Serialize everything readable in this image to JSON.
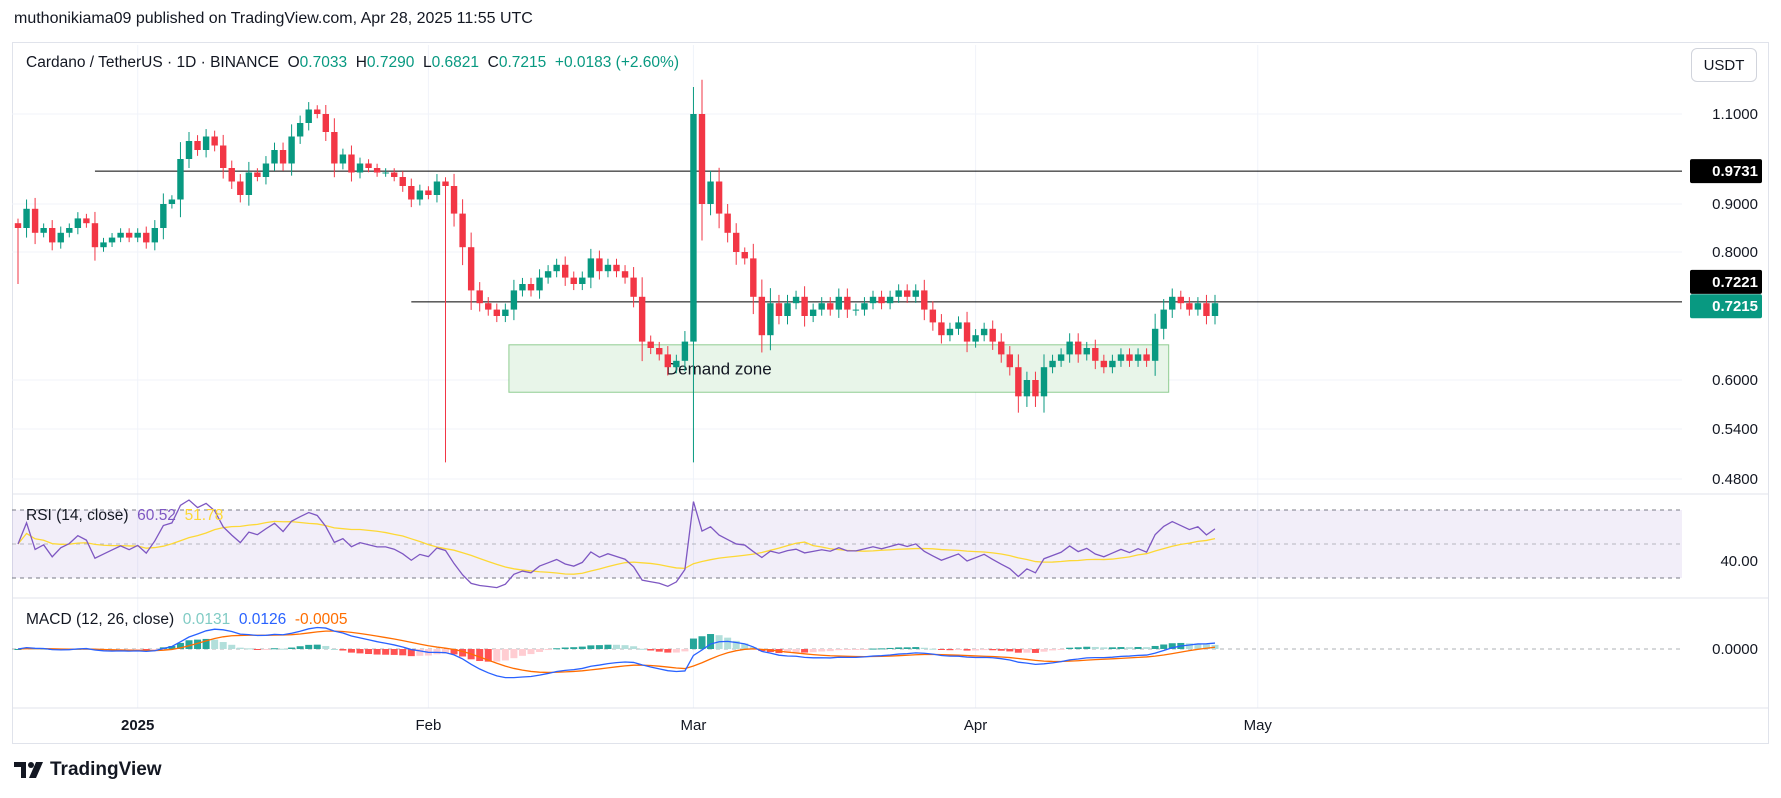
{
  "header": {
    "published": "muthonikiama09 published on TradingView.com, Apr 28, 2025 11:55 UTC"
  },
  "legend": {
    "symbol": "Cardano / TetherUS · 1D · BINANCE",
    "o_label": "O",
    "o_value": "0.7033",
    "h_label": "H",
    "h_value": "0.7290",
    "l_label": "L",
    "l_value": "0.6821",
    "c_label": "C",
    "c_value": "0.7215",
    "change": "+0.0183 (+2.60%)"
  },
  "currency_button": "USDT",
  "rsi_legend": {
    "name": "RSI (14, close)",
    "rsi": "60.52",
    "ma": "51.78"
  },
  "macd_legend": {
    "name": "MACD (12, 26, close)",
    "hist": "0.0131",
    "macd": "0.0126",
    "signal": "-0.0005"
  },
  "footer": {
    "brand": "TradingView"
  },
  "colors": {
    "up": "#089981",
    "down": "#f23645",
    "rsi": "#7e57c2",
    "rsi_ma": "#fdd835",
    "macd": "#2962ff",
    "signal": "#ff6d00",
    "hist_up_strong": "#26a69a",
    "hist_up_weak": "#b2dfdb",
    "hist_down_strong": "#ff5252",
    "hist_down_weak": "#ffcdd2",
    "zone_fill": "#e8f5e9"
  },
  "chart_data": {
    "type": "candlestick",
    "price_ticks": [
      "1.1000",
      "0.9000",
      "0.8000",
      "0.6000",
      "0.5400",
      "0.4800"
    ],
    "date_ticks": [
      "2025",
      "Feb",
      "Mar",
      "Apr",
      "May"
    ],
    "rsi_ticks": [
      "40.00"
    ],
    "macd_ticks": [
      "0.0000"
    ],
    "horizontal_lines": [
      {
        "value": 0.9731,
        "label": "0.9731",
        "color": "#000000"
      },
      {
        "value": 0.7221,
        "label": "0.7221",
        "color": "#000000"
      }
    ],
    "last_price": {
      "value": 0.7215,
      "label": "0.7215",
      "color": "#089981"
    },
    "annotation": {
      "text": "Demand zone",
      "top": 0.655,
      "bottom": 0.585,
      "start_day": 58,
      "end_day": 134
    },
    "closes": [
      0.85,
      0.89,
      0.84,
      0.85,
      0.82,
      0.84,
      0.85,
      0.87,
      0.86,
      0.81,
      0.82,
      0.83,
      0.84,
      0.83,
      0.84,
      0.82,
      0.85,
      0.9,
      0.91,
      1.0,
      1.04,
      1.02,
      1.05,
      1.03,
      0.98,
      0.95,
      0.92,
      0.97,
      0.96,
      0.99,
      1.02,
      0.99,
      1.05,
      1.08,
      1.11,
      1.1,
      1.06,
      0.99,
      1.01,
      0.97,
      0.99,
      0.98,
      0.97,
      0.97,
      0.96,
      0.94,
      0.91,
      0.93,
      0.92,
      0.95,
      0.94,
      0.88,
      0.81,
      0.74,
      0.72,
      0.71,
      0.7,
      0.71,
      0.74,
      0.75,
      0.74,
      0.76,
      0.77,
      0.78,
      0.76,
      0.75,
      0.76,
      0.79,
      0.77,
      0.78,
      0.77,
      0.76,
      0.73,
      0.66,
      0.65,
      0.64,
      0.62,
      0.63,
      0.66,
      1.1,
      0.9,
      0.95,
      0.88,
      0.84,
      0.8,
      0.79,
      0.73,
      0.67,
      0.72,
      0.7,
      0.72,
      0.73,
      0.7,
      0.71,
      0.72,
      0.71,
      0.73,
      0.71,
      0.71,
      0.72,
      0.73,
      0.72,
      0.73,
      0.74,
      0.73,
      0.74,
      0.71,
      0.69,
      0.67,
      0.68,
      0.69,
      0.66,
      0.67,
      0.68,
      0.66,
      0.64,
      0.62,
      0.58,
      0.6,
      0.58,
      0.62,
      0.63,
      0.64,
      0.66,
      0.64,
      0.65,
      0.63,
      0.62,
      0.63,
      0.64,
      0.63,
      0.64,
      0.63,
      0.68,
      0.71,
      0.73,
      0.72,
      0.71,
      0.72,
      0.7,
      0.72
    ]
  }
}
